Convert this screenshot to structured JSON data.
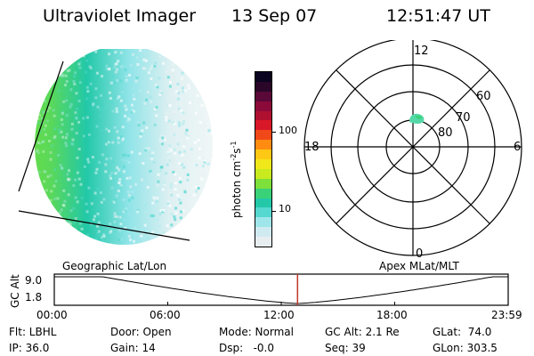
{
  "header": {
    "instrument": "Ultraviolet Imager",
    "date": "13 Sep 07",
    "time": "12:51:47 UT"
  },
  "colorbar": {
    "label": "photon cm",
    "label_exp1": "-2",
    "label_mid": "s",
    "label_exp2": "-1",
    "tick_100": "100",
    "tick_10": "10",
    "colors": [
      "#e8eef0",
      "#cfeaf0",
      "#9fe6ea",
      "#55d8d0",
      "#22c8a8",
      "#3ad278",
      "#7ee03a",
      "#c8ea1e",
      "#f0e81a",
      "#ffc814",
      "#ff8c10",
      "#f04818",
      "#d81828",
      "#b01030",
      "#8c0a3a",
      "#5a0838",
      "#2a0628",
      "#0a0420"
    ]
  },
  "polar": {
    "labels": {
      "mlt12": "12",
      "mlt18": "18",
      "mlt6": "6",
      "mlt0": "0",
      "lat60": "60",
      "lat70": "70",
      "lat80": "80"
    }
  },
  "orbit": {
    "left_title": "Geographic Lat/Lon",
    "right_title": "Apex MLat/MLT",
    "yaxis_label": "GC Alt",
    "y_top": "9.0",
    "y_bottom": "1.8",
    "x_ticks": [
      "00:00",
      "06:00",
      "12:00",
      "18:00",
      "23:59"
    ],
    "current_time_fraction": 0.5359
  },
  "info": {
    "filter": "Flt: LBHL",
    "ip": "IP: 36.0",
    "door": "Door: Open",
    "gain": "Gain: 14",
    "mode": "Mode: Normal",
    "dsp": "Dsp:   -0.0",
    "gcalt": "GC Alt: 2.1 Re",
    "seq": "Seq: 39",
    "glat": "GLat:  74.0",
    "glon": "GLon: 303.5"
  },
  "colors": {
    "orbit_marker": "#c0392b"
  }
}
